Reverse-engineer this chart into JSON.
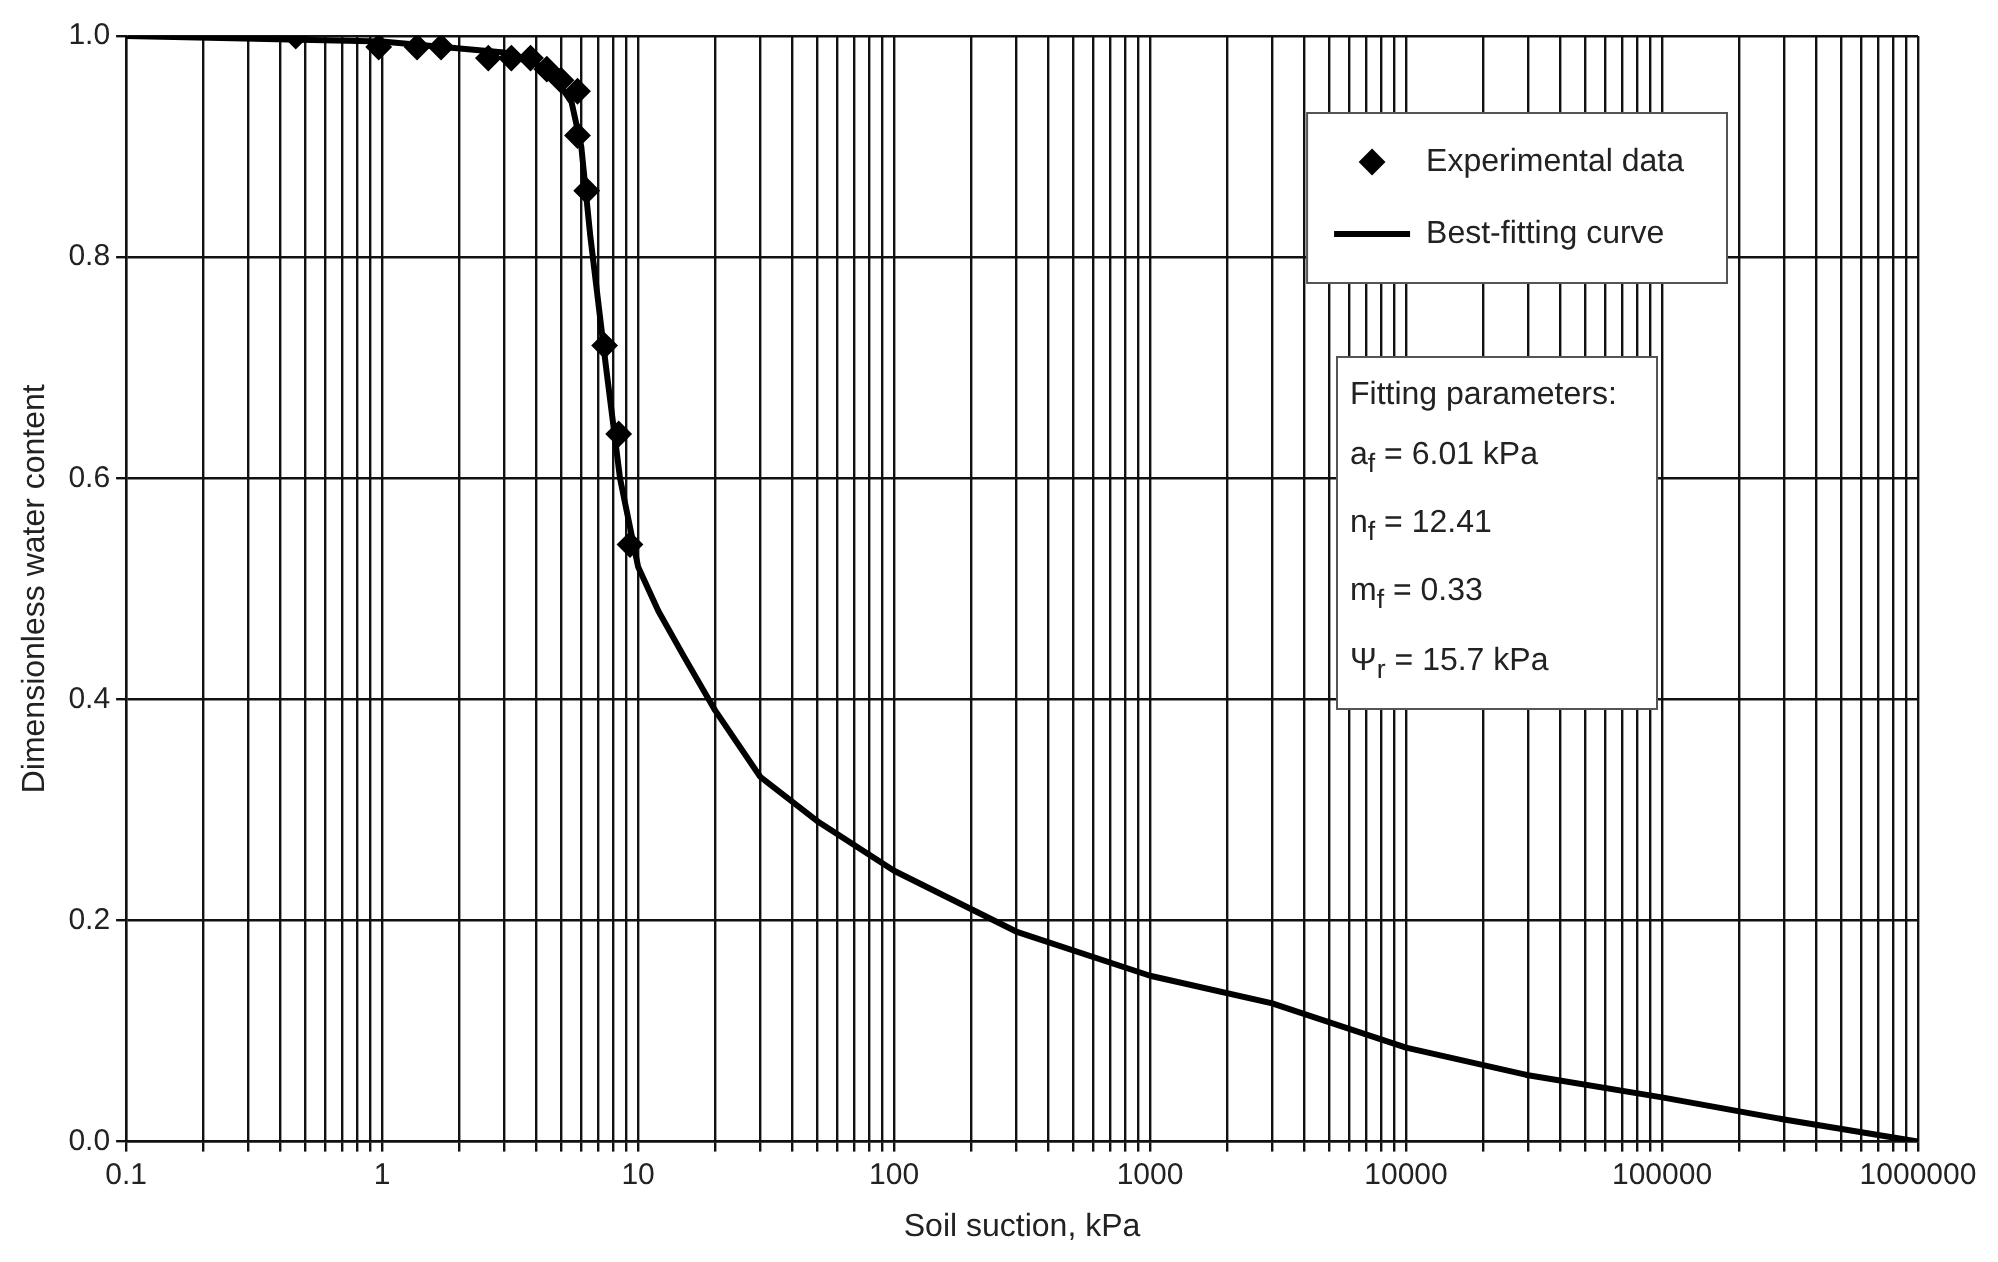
{
  "chart_data": {
    "type": "scatter",
    "xlabel": "Soil suction, kPa",
    "ylabel": "Dimensionless water content",
    "xlim": [
      0.1,
      1000000
    ],
    "ylim": [
      0,
      1
    ],
    "xticks": [
      0.1,
      {
        "value": 0.2,
        "label": null
      },
      {
        "value": 0.3,
        "label": null
      },
      {
        "value": 0.4,
        "label": null
      },
      {
        "value": 0.5,
        "label": null
      },
      {
        "value": 0.6,
        "label": null
      },
      {
        "value": 0.7,
        "label": null
      },
      {
        "value": 0.8,
        "label": null
      },
      {
        "value": 0.9,
        "label": null
      },
      1,
      {
        "value": 2,
        "label": null
      },
      {
        "value": 3,
        "label": null
      },
      {
        "value": 4,
        "label": null
      },
      {
        "value": 5,
        "label": null
      },
      {
        "value": 6,
        "label": null
      },
      {
        "value": 7,
        "label": null
      },
      {
        "value": 8,
        "label": null
      },
      {
        "value": 9,
        "label": null
      },
      10,
      {
        "value": 20,
        "label": null
      },
      {
        "value": 30,
        "label": null
      },
      {
        "value": 40,
        "label": null
      },
      {
        "value": 50,
        "label": null
      },
      {
        "value": 60,
        "label": null
      },
      {
        "value": 70,
        "label": null
      },
      {
        "value": 80,
        "label": null
      },
      {
        "value": 90,
        "label": null
      },
      100,
      {
        "value": 200,
        "label": null
      },
      {
        "value": 300,
        "label": null
      },
      {
        "value": 400,
        "label": null
      },
      {
        "value": 500,
        "label": null
      },
      {
        "value": 600,
        "label": null
      },
      {
        "value": 700,
        "label": null
      },
      {
        "value": 800,
        "label": null
      },
      {
        "value": 900,
        "label": null
      },
      1000,
      {
        "value": 2000,
        "label": null
      },
      {
        "value": 3000,
        "label": null
      },
      {
        "value": 4000,
        "label": null
      },
      {
        "value": 5000,
        "label": null
      },
      {
        "value": 6000,
        "label": null
      },
      {
        "value": 7000,
        "label": null
      },
      {
        "value": 8000,
        "label": null
      },
      {
        "value": 9000,
        "label": null
      },
      10000,
      {
        "value": 20000,
        "label": null
      },
      {
        "value": 30000,
        "label": null
      },
      {
        "value": 40000,
        "label": null
      },
      {
        "value": 50000,
        "label": null
      },
      {
        "value": 60000,
        "label": null
      },
      {
        "value": 70000,
        "label": null
      },
      {
        "value": 80000,
        "label": null
      },
      {
        "value": 90000,
        "label": null
      },
      100000,
      {
        "value": 200000,
        "label": null
      },
      {
        "value": 300000,
        "label": null
      },
      {
        "value": 400000,
        "label": null
      },
      {
        "value": 500000,
        "label": null
      },
      {
        "value": 600000,
        "label": null
      },
      {
        "value": 700000,
        "label": null
      },
      {
        "value": 800000,
        "label": null
      },
      {
        "value": 900000,
        "label": null
      },
      1000000
    ],
    "yticks": [
      {
        "value": 0,
        "label": "0.0"
      },
      0.2,
      0.4,
      0.6,
      0.8,
      {
        "value": 1,
        "label": "1.0"
      }
    ],
    "log": "x",
    "grid": true,
    "legend": "top right",
    "series": [
      {
        "name": "Experimental data",
        "type": "scatter",
        "color": "#000000",
        "marker": "diamond",
        "x": [
          0.46,
          0.97,
          1.37,
          1.7,
          2.6,
          3.2,
          3.8,
          4.4,
          5.0,
          5.8,
          5.8,
          6.3,
          7.4,
          8.4,
          9.3
        ],
        "values": [
          1.0,
          0.99,
          0.99,
          0.99,
          0.98,
          0.98,
          0.98,
          0.97,
          0.96,
          0.95,
          0.91,
          0.86,
          0.72,
          0.64,
          0.54
        ]
      },
      {
        "name": "Best-fitting curve",
        "type": "line",
        "color": "#000000",
        "marker": "none",
        "x": [
          0.1,
          1,
          3,
          4.5,
          5.5,
          6,
          6.5,
          7.5,
          8.5,
          10,
          12,
          15,
          20,
          30,
          50,
          100,
          300,
          1000,
          3000,
          10000,
          30000,
          100000,
          300000,
          1000000
        ],
        "values": [
          1.0,
          0.995,
          0.985,
          0.97,
          0.94,
          0.9,
          0.82,
          0.7,
          0.6,
          0.52,
          0.48,
          0.44,
          0.39,
          0.33,
          0.29,
          0.245,
          0.19,
          0.15,
          0.125,
          0.085,
          0.06,
          0.04,
          0.02,
          0
        ]
      }
    ],
    "annotations": [
      "Fitting parameters:",
      "a$_{f}$ = 6.01 kPa",
      "n$_{f}$ = 12.41",
      "m$_{f}$ = 0.33",
      "Ψ$_{r}$ = 15.7 kPa"
    ]
  }
}
